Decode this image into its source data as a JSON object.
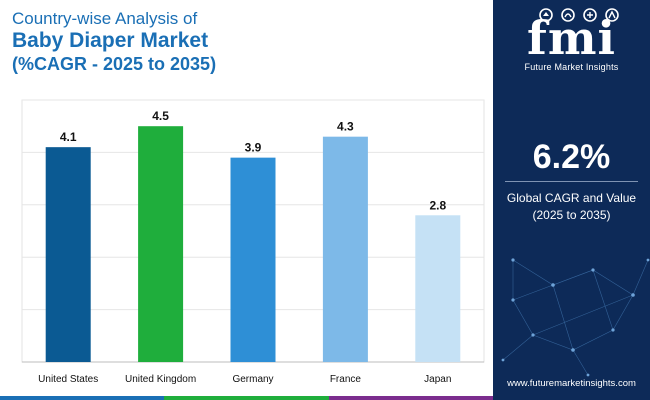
{
  "title": {
    "line1": "Country-wise Analysis of",
    "line2": "Baby Diaper Market",
    "line3": "(%CAGR - 2025 to 2035)"
  },
  "chart_data": {
    "type": "bar",
    "categories": [
      "United States",
      "United Kingdom",
      "Germany",
      "France",
      "Japan"
    ],
    "values": [
      4.1,
      4.5,
      3.9,
      4.3,
      2.8
    ],
    "colors": [
      "#0b5a93",
      "#1fae3c",
      "#2e8fd6",
      "#7db9e8",
      "#c5e1f5"
    ],
    "ylim": [
      0,
      5
    ],
    "grid": true,
    "legend": "none",
    "title": "Country-wise Analysis of Baby Diaper Market (%CAGR - 2025 to 2035)",
    "xlabel": "",
    "ylabel": ""
  },
  "panel": {
    "logo_text": "fmi",
    "logo_subtitle": "Future Market Insights",
    "stat_value": "6.2%",
    "stat_label_line1": "Global CAGR and Value",
    "stat_label_line2": "(2025 to 2035)",
    "website": "www.futuremarketinsights.com"
  },
  "colors": {
    "panel_bg": "#0d2a58",
    "title": "#1a6fb5",
    "strip": [
      "#1a6fb5",
      "#1fae3c",
      "#7b2d8e",
      "#0d2a58"
    ]
  }
}
